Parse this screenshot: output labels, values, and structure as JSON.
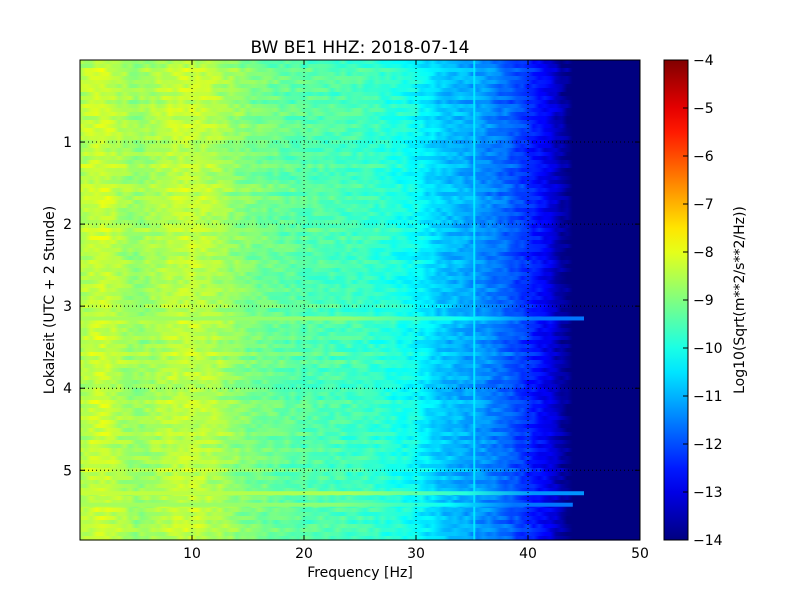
{
  "chart_data": {
    "type": "heatmap",
    "title": "BW BE1 HHZ: 2018-07-14",
    "xlabel": "Frequency [Hz]",
    "ylabel": "Lokalzeit (UTC + 2 Stunde)",
    "xlim": [
      0,
      50
    ],
    "ylim": [
      5.85,
      0.0
    ],
    "y_inverted": true,
    "x_ticks": [
      10,
      20,
      30,
      40,
      50
    ],
    "x_tick_labels": [
      "10",
      "20",
      "30",
      "40",
      "50"
    ],
    "y_ticks": [
      1,
      2,
      3,
      4,
      5
    ],
    "y_tick_labels": [
      "1",
      "2",
      "3",
      "4",
      "5"
    ],
    "grid": true,
    "colormap": "jet",
    "colorbar": {
      "label": "Log10(Sqrt(m**2/s**2/Hz))",
      "min": -14,
      "max": -4,
      "ticks": [
        -4,
        -5,
        -6,
        -7,
        -8,
        -9,
        -10,
        -11,
        -12,
        -13,
        -14
      ],
      "tick_labels": [
        "−4",
        "−5",
        "−6",
        "−7",
        "−8",
        "−9",
        "−10",
        "−11",
        "−12",
        "−13",
        "−14"
      ]
    },
    "spectrum_profile": {
      "frequency_hz": [
        0,
        2,
        5,
        8,
        10,
        12,
        15,
        20,
        25,
        28,
        30,
        32,
        34,
        36,
        38,
        40,
        42,
        43,
        44,
        46,
        50
      ],
      "log_amplitude": [
        -8.5,
        -8.2,
        -8.8,
        -8.4,
        -8.3,
        -8.5,
        -9.0,
        -9.4,
        -9.6,
        -9.9,
        -10.2,
        -10.7,
        -11.0,
        -11.3,
        -11.7,
        -12.3,
        -13.0,
        -13.6,
        -14.0,
        -14.0,
        -14.0
      ]
    },
    "features": [
      {
        "kind": "narrow_line",
        "frequency_hz": 35.2,
        "value": -10.4
      },
      {
        "kind": "broadband_burst",
        "time_h": 3.15,
        "max_frequency_hz": 45,
        "value": -8.6
      },
      {
        "kind": "broadband_burst",
        "time_h": 5.28,
        "max_frequency_hz": 45,
        "value": -8.3
      },
      {
        "kind": "broadband_burst",
        "time_h": 5.42,
        "max_frequency_hz": 44,
        "value": -8.6
      }
    ]
  }
}
